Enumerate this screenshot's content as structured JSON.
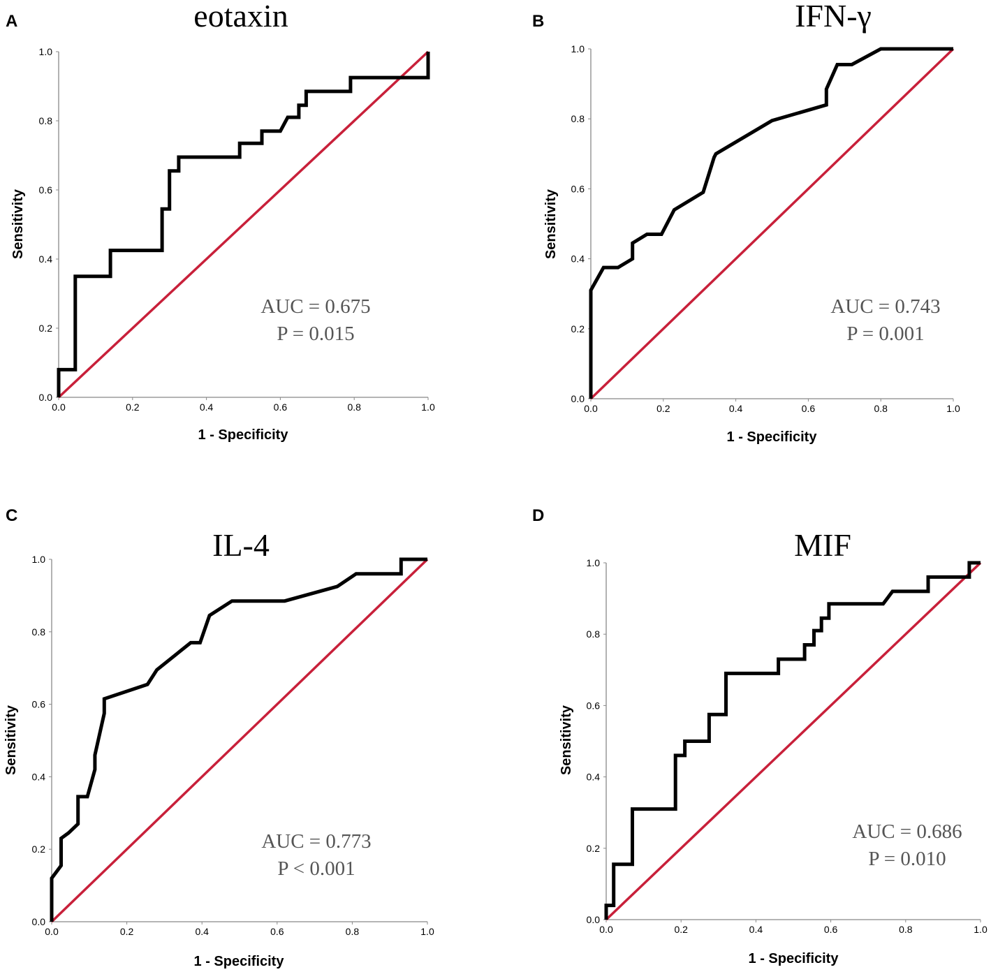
{
  "chart_data": [
    {
      "type": "line",
      "panel": "A",
      "title": "eotaxin",
      "xlabel": "1 - Specificity",
      "ylabel": "Sensitivity",
      "xlim": [
        0,
        1
      ],
      "ylim": [
        0,
        1
      ],
      "xticks": [
        "0.0",
        "0.2",
        "0.4",
        "0.6",
        "0.8",
        "1.0"
      ],
      "yticks": [
        "0.0",
        "0.2",
        "0.4",
        "0.6",
        "0.8",
        "1.0"
      ],
      "annotations": [
        "AUC = 0.675",
        "P = 0.015"
      ],
      "reference_line": {
        "x": [
          0,
          1
        ],
        "y": [
          0,
          1
        ],
        "color": "#C8203A"
      },
      "series": [
        {
          "name": "ROC",
          "color": "#000000",
          "x": [
            0,
            0,
            0.045,
            0.045,
            0.14,
            0.14,
            0.28,
            0.28,
            0.3,
            0.3,
            0.325,
            0.325,
            0.49,
            0.49,
            0.55,
            0.55,
            0.6,
            0.62,
            0.65,
            0.65,
            0.67,
            0.67,
            0.79,
            0.79,
            1.0,
            1.0
          ],
          "y": [
            0,
            0.08,
            0.08,
            0.35,
            0.35,
            0.425,
            0.425,
            0.545,
            0.545,
            0.655,
            0.655,
            0.695,
            0.695,
            0.735,
            0.735,
            0.77,
            0.77,
            0.81,
            0.81,
            0.845,
            0.845,
            0.885,
            0.885,
            0.925,
            0.925,
            1.0
          ]
        }
      ]
    },
    {
      "type": "line",
      "panel": "B",
      "title": "IFN-γ",
      "xlabel": "1 - Specificity",
      "ylabel": "Sensitivity",
      "xlim": [
        0,
        1
      ],
      "ylim": [
        0,
        1
      ],
      "xticks": [
        "0.0",
        "0.2",
        "0.4",
        "0.6",
        "0.8",
        "1.0"
      ],
      "yticks": [
        "0.0",
        "0.2",
        "0.4",
        "0.6",
        "0.8",
        "1.0"
      ],
      "annotations": [
        "AUC = 0.743",
        "P = 0.001"
      ],
      "reference_line": {
        "x": [
          0,
          1
        ],
        "y": [
          0,
          1
        ],
        "color": "#C8203A"
      },
      "series": [
        {
          "name": "ROC",
          "color": "#000000",
          "x": [
            0,
            0,
            0.035,
            0.075,
            0.115,
            0.115,
            0.155,
            0.195,
            0.23,
            0.31,
            0.34,
            0.345,
            0.5,
            0.65,
            0.65,
            0.68,
            0.72,
            0.8,
            1.0
          ],
          "y": [
            0,
            0.31,
            0.375,
            0.375,
            0.4,
            0.445,
            0.47,
            0.47,
            0.54,
            0.59,
            0.69,
            0.7,
            0.795,
            0.84,
            0.885,
            0.955,
            0.955,
            1.0,
            1.0
          ]
        }
      ]
    },
    {
      "type": "line",
      "panel": "C",
      "title": "IL-4",
      "xlabel": "1 - Specificity",
      "ylabel": "Sensitivity",
      "xlim": [
        0,
        1
      ],
      "ylim": [
        0,
        1
      ],
      "xticks": [
        "0.0",
        "0.2",
        "0.4",
        "0.6",
        "0.8",
        "1.0"
      ],
      "yticks": [
        "0.0",
        "0.2",
        "0.4",
        "0.6",
        "0.8",
        "1.0"
      ],
      "annotations": [
        "AUC = 0.773",
        "P < 0.001"
      ],
      "reference_line": {
        "x": [
          0,
          1
        ],
        "y": [
          0,
          1
        ],
        "color": "#C8203A"
      },
      "series": [
        {
          "name": "ROC",
          "color": "#000000",
          "x": [
            0,
            0,
            0.025,
            0.025,
            0.045,
            0.07,
            0.07,
            0.095,
            0.115,
            0.115,
            0.14,
            0.14,
            0.255,
            0.28,
            0.37,
            0.395,
            0.42,
            0.48,
            0.62,
            0.76,
            0.81,
            0.93,
            0.93,
            1.0
          ],
          "y": [
            0,
            0.12,
            0.155,
            0.23,
            0.245,
            0.27,
            0.345,
            0.345,
            0.42,
            0.46,
            0.575,
            0.615,
            0.655,
            0.695,
            0.77,
            0.77,
            0.845,
            0.885,
            0.885,
            0.925,
            0.96,
            0.96,
            1.0,
            1.0
          ]
        }
      ]
    },
    {
      "type": "line",
      "panel": "D",
      "title": "MIF",
      "xlabel": "1 - Specificity",
      "ylabel": "Sensitivity",
      "xlim": [
        0,
        1
      ],
      "ylim": [
        0,
        1
      ],
      "xticks": [
        "0.0",
        "0.2",
        "0.4",
        "0.6",
        "0.8",
        "1.0"
      ],
      "yticks": [
        "0.0",
        "0.2",
        "0.4",
        "0.6",
        "0.8",
        "1.0"
      ],
      "annotations": [
        "AUC = 0.686",
        "P = 0.010"
      ],
      "reference_line": {
        "x": [
          0,
          1
        ],
        "y": [
          0,
          1
        ],
        "color": "#C8203A"
      },
      "series": [
        {
          "name": "ROC",
          "color": "#000000",
          "x": [
            0,
            0,
            0.02,
            0.02,
            0.07,
            0.07,
            0.185,
            0.185,
            0.21,
            0.21,
            0.275,
            0.275,
            0.32,
            0.32,
            0.46,
            0.46,
            0.53,
            0.53,
            0.555,
            0.555,
            0.575,
            0.575,
            0.595,
            0.595,
            0.74,
            0.765,
            0.86,
            0.86,
            0.97,
            0.97,
            1.0
          ],
          "y": [
            0,
            0.04,
            0.04,
            0.155,
            0.155,
            0.31,
            0.31,
            0.46,
            0.46,
            0.5,
            0.5,
            0.575,
            0.575,
            0.69,
            0.69,
            0.73,
            0.73,
            0.77,
            0.77,
            0.81,
            0.81,
            0.845,
            0.845,
            0.885,
            0.885,
            0.92,
            0.92,
            0.96,
            0.96,
            1.0,
            1.0
          ]
        }
      ]
    }
  ]
}
